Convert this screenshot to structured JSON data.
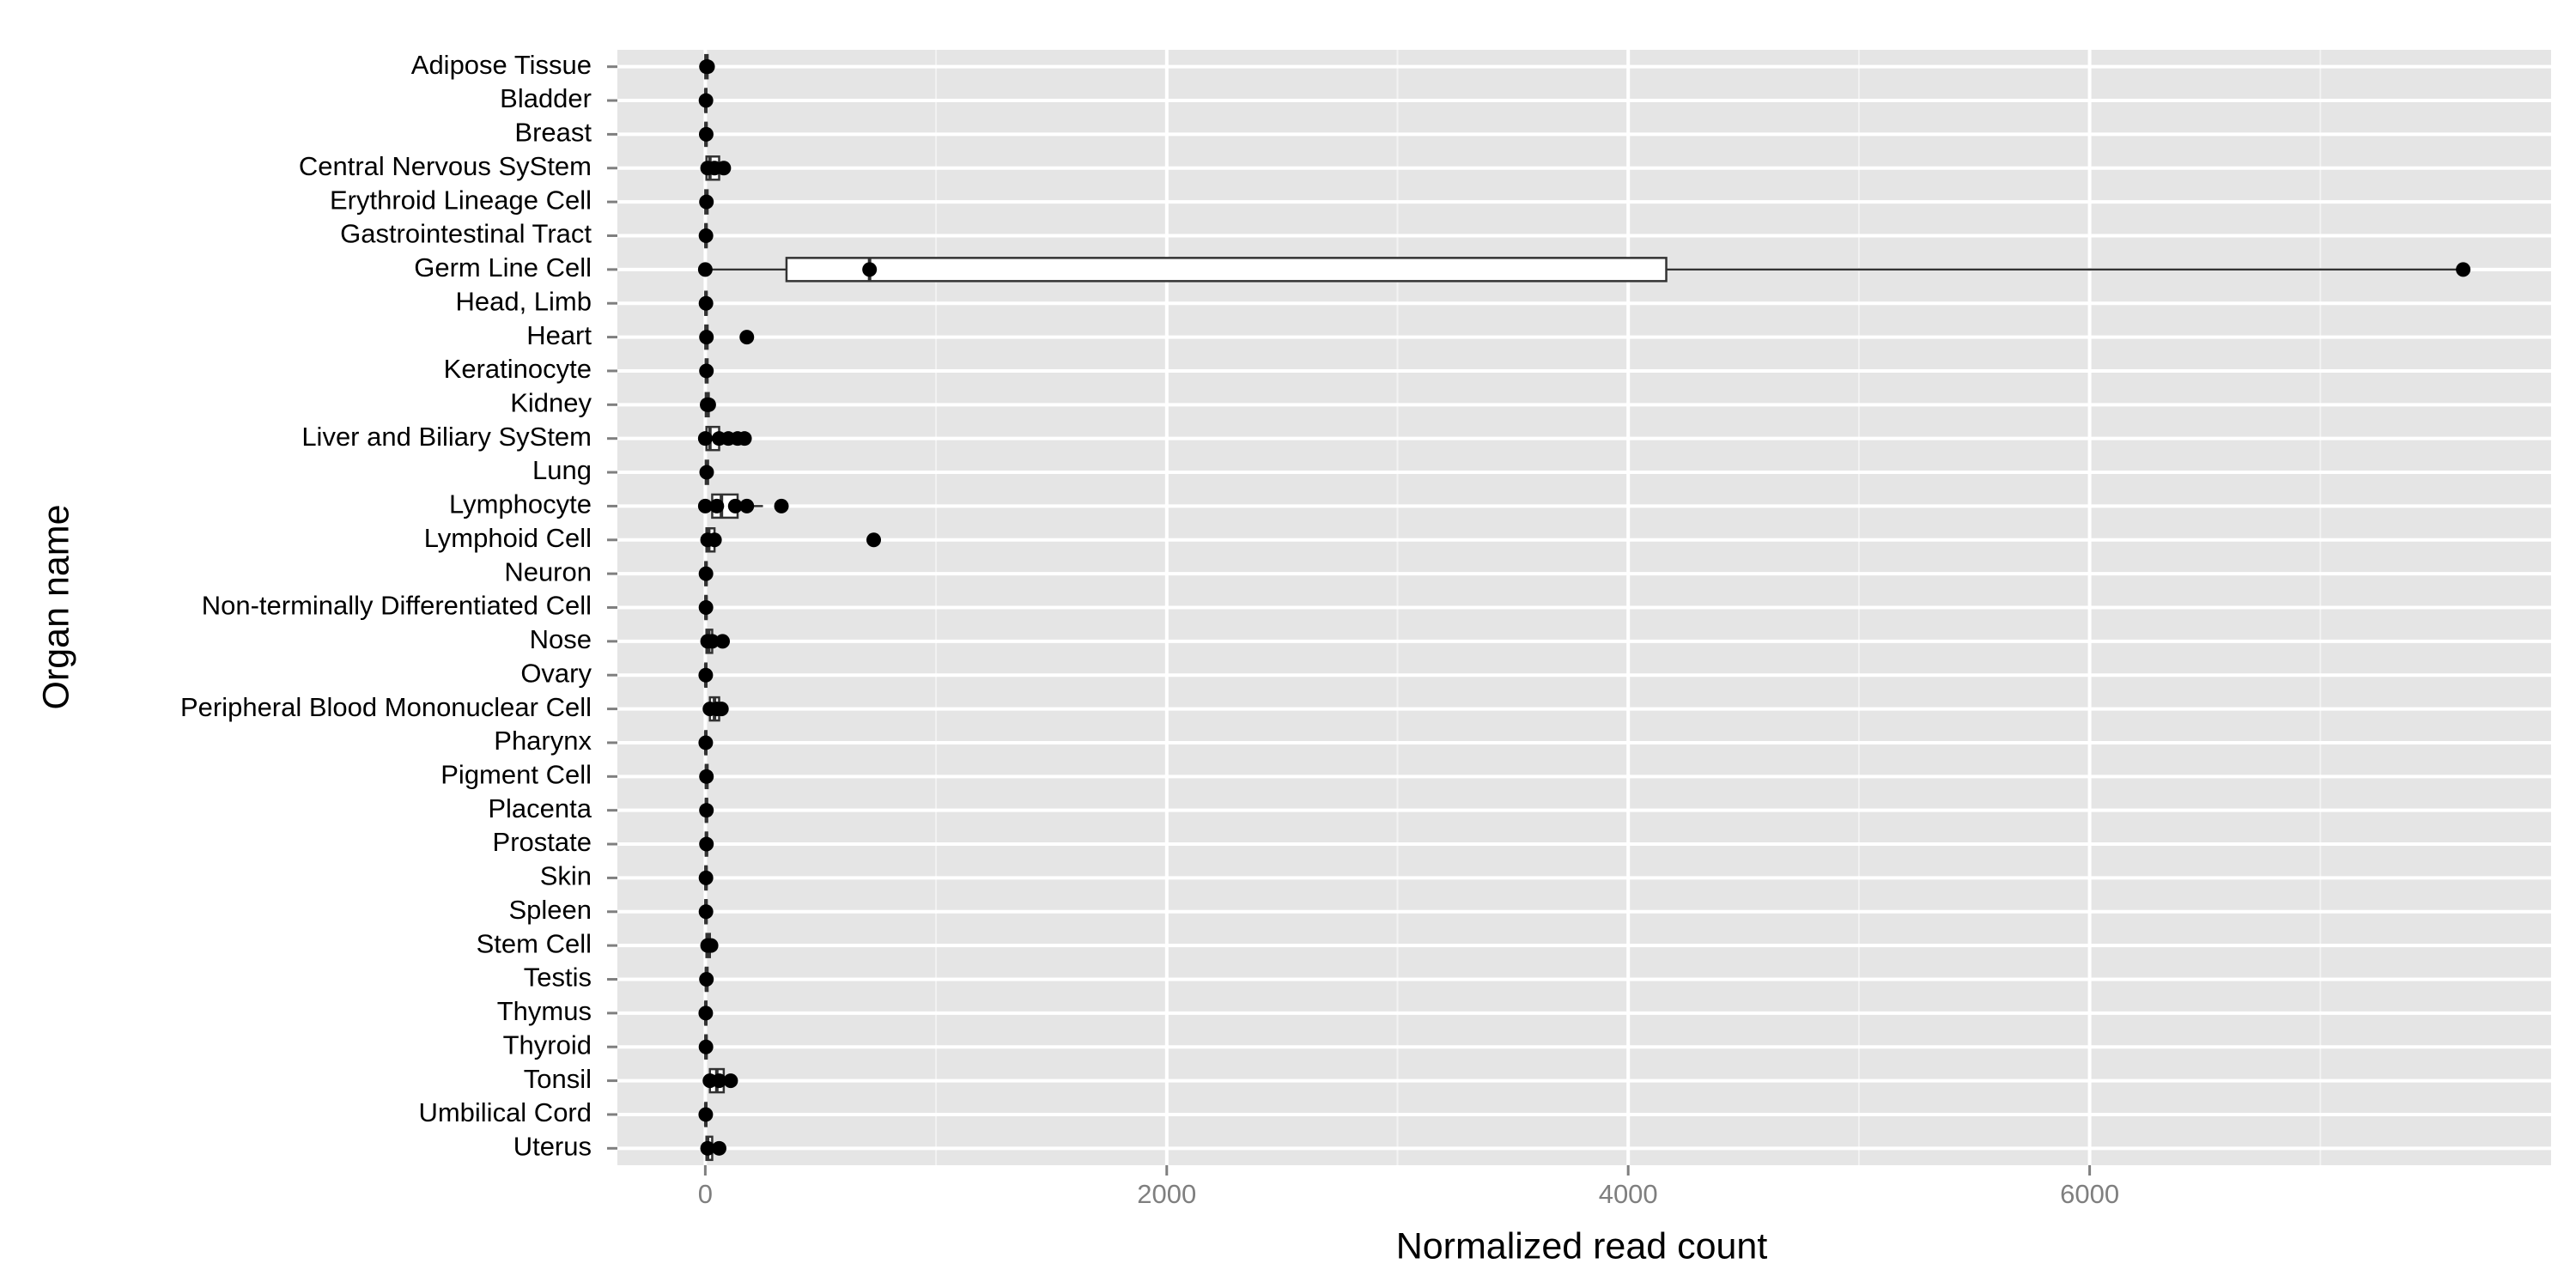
{
  "chart_data": {
    "type": "boxplot",
    "orientation": "horizontal",
    "xlabel": "Normalized read count",
    "ylabel": "Organ name",
    "xlim": [
      -381,
      8000
    ],
    "xticks": [
      0,
      2000,
      4000,
      6000
    ],
    "grid": true,
    "categories": [
      "Adipose Tissue",
      "Bladder",
      "Breast",
      "Central Nervous SyStem",
      "Erythroid Lineage Cell",
      "Gastrointestinal Tract",
      "Germ Line Cell",
      "Head, Limb",
      "Heart",
      "Keratinocyte",
      "Kidney",
      "Liver and Biliary SyStem",
      "Lung",
      "Lymphocyte",
      "Lymphoid Cell",
      "Neuron",
      "Non-terminally Differentiated Cell",
      "Nose",
      "Ovary",
      "Peripheral Blood Mononuclear Cell",
      "Pharynx",
      "Pigment Cell",
      "Placenta",
      "Prostate",
      "Skin",
      "Spleen",
      "Stem Cell",
      "Testis",
      "Thymus",
      "Thyroid",
      "Tonsil",
      "Umbilical Cord",
      "Uterus"
    ],
    "boxes": [
      [
        0,
        0,
        5,
        10,
        20
      ],
      [
        0,
        0,
        2,
        5,
        8
      ],
      [
        0,
        0,
        3,
        6,
        10
      ],
      [
        0,
        5,
        20,
        60,
        90
      ],
      [
        0,
        0,
        5,
        10,
        15
      ],
      [
        0,
        0,
        3,
        6,
        10
      ],
      [
        0,
        352,
        712,
        4165,
        7619
      ],
      [
        0,
        0,
        3,
        6,
        10
      ],
      [
        0,
        0,
        5,
        10,
        20
      ],
      [
        0,
        2,
        5,
        10,
        15
      ],
      [
        0,
        2,
        8,
        15,
        25
      ],
      [
        0,
        5,
        20,
        60,
        120
      ],
      [
        0,
        2,
        6,
        12,
        20
      ],
      [
        0,
        30,
        70,
        140,
        250
      ],
      [
        0,
        5,
        15,
        40,
        70
      ],
      [
        0,
        0,
        3,
        6,
        10
      ],
      [
        0,
        0,
        3,
        6,
        10
      ],
      [
        0,
        5,
        15,
        30,
        80
      ],
      [
        0,
        0,
        2,
        5,
        8
      ],
      [
        0,
        20,
        40,
        60,
        80
      ],
      [
        0,
        0,
        2,
        5,
        8
      ],
      [
        0,
        2,
        5,
        10,
        15
      ],
      [
        0,
        2,
        5,
        8,
        12
      ],
      [
        0,
        2,
        5,
        8,
        12
      ],
      [
        0,
        0,
        3,
        6,
        10
      ],
      [
        0,
        0,
        3,
        6,
        10
      ],
      [
        0,
        5,
        10,
        20,
        35
      ],
      [
        0,
        2,
        5,
        10,
        15
      ],
      [
        0,
        0,
        2,
        5,
        8
      ],
      [
        0,
        0,
        3,
        6,
        10
      ],
      [
        0,
        20,
        50,
        80,
        130
      ],
      [
        0,
        0,
        2,
        5,
        8
      ],
      [
        0,
        5,
        10,
        30,
        70
      ]
    ],
    "points": [
      [
        5,
        10
      ],
      [
        3
      ],
      [
        4
      ],
      [
        10,
        40,
        80
      ],
      [
        5
      ],
      [
        3
      ],
      [
        0,
        712,
        7619
      ],
      [
        3
      ],
      [
        5,
        180
      ],
      [
        5
      ],
      [
        8,
        15
      ],
      [
        0,
        60,
        100,
        140,
        170
      ],
      [
        6
      ],
      [
        0,
        50,
        130,
        180,
        330
      ],
      [
        10,
        40,
        730
      ],
      [
        3
      ],
      [
        3
      ],
      [
        10,
        30,
        75
      ],
      [
        2
      ],
      [
        20,
        50,
        70
      ],
      [
        2
      ],
      [
        5
      ],
      [
        5
      ],
      [
        5
      ],
      [
        3
      ],
      [
        3
      ],
      [
        10,
        25
      ],
      [
        5
      ],
      [
        2
      ],
      [
        3
      ],
      [
        20,
        60,
        110
      ],
      [
        2
      ],
      [
        10,
        60
      ]
    ],
    "panel_color": "#e5e5e5",
    "box_fill": "#ffffff",
    "line_color": "#333333",
    "point_color": "#000000"
  }
}
